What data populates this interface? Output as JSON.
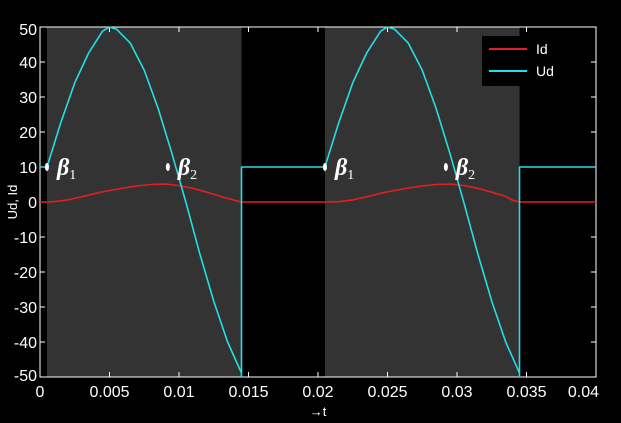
{
  "chart_data": {
    "type": "line",
    "title": "",
    "xlabel": "→t",
    "ylabel": "Ud, Id",
    "xlim": [
      0,
      0.04
    ],
    "ylim": [
      -50,
      50
    ],
    "x_ticks": [
      "0",
      "0.005",
      "0.01",
      "0.015",
      "0.02",
      "0.025",
      "0.03",
      "0.035",
      "0.04"
    ],
    "y_ticks": [
      "50",
      "40",
      "30",
      "20",
      "10",
      "0",
      "-10",
      "-20",
      "-30",
      "-40",
      "-50"
    ],
    "grid": false,
    "legend_position": "top-right",
    "shaded_intervals": [
      [
        0.0005,
        0.0145
      ],
      [
        0.0205,
        0.0345
      ]
    ],
    "series": [
      {
        "name": "Id",
        "color": "#e02020",
        "x": [
          0,
          0.0005,
          0.001,
          0.002,
          0.003,
          0.004,
          0.005,
          0.006,
          0.007,
          0.008,
          0.009,
          0.01,
          0.011,
          0.012,
          0.013,
          0.014,
          0.0145,
          0.0205,
          0.0215,
          0.0225,
          0.0235,
          0.0245,
          0.0255,
          0.0265,
          0.0275,
          0.0285,
          0.0295,
          0.0305,
          0.0315,
          0.0325,
          0.0335,
          0.034,
          0.0345,
          0.04
        ],
        "y": [
          0,
          0,
          0.1,
          0.6,
          1.5,
          2.5,
          3.3,
          4.0,
          4.6,
          5.0,
          5.1,
          4.7,
          3.9,
          2.8,
          1.6,
          0.5,
          0,
          0,
          0.1,
          0.6,
          1.5,
          2.5,
          3.3,
          4.0,
          4.6,
          5.0,
          5.1,
          4.7,
          3.9,
          2.8,
          1.6,
          0.5,
          0,
          0
        ]
      },
      {
        "name": "Ud",
        "color": "#22e0e6",
        "x": [
          0,
          0.0005,
          0.0005,
          0.0015,
          0.0025,
          0.0035,
          0.0045,
          0.005,
          0.0055,
          0.0065,
          0.0075,
          0.0085,
          0.0095,
          0.0105,
          0.0115,
          0.0125,
          0.0135,
          0.0145,
          0.0145,
          0.0145,
          0.0205,
          0.0205,
          0.0215,
          0.0225,
          0.0235,
          0.0245,
          0.025,
          0.0255,
          0.0265,
          0.0275,
          0.0285,
          0.0295,
          0.0305,
          0.0315,
          0.0325,
          0.0335,
          0.0345,
          0.0345,
          0.0345,
          0.04
        ],
        "y": [
          10,
          10,
          10,
          22.7,
          34.1,
          42.6,
          48.8,
          50,
          49.4,
          45.4,
          37.6,
          26.7,
          13.8,
          -0.2,
          -14.8,
          -28.4,
          -40.0,
          -48.9,
          -50,
          10,
          10,
          10,
          22.7,
          34.1,
          42.6,
          48.8,
          50,
          49.4,
          45.4,
          37.6,
          26.7,
          13.8,
          -0.2,
          -14.8,
          -28.4,
          -40.0,
          -48.9,
          -50,
          10,
          10
        ]
      }
    ],
    "annotations": [
      {
        "symbol": "β",
        "subscript": "1",
        "x": 0.0005,
        "y": 10
      },
      {
        "symbol": "β",
        "subscript": "2",
        "x": 0.0092,
        "y": 10
      },
      {
        "symbol": "β",
        "subscript": "1",
        "x": 0.0205,
        "y": 10
      },
      {
        "symbol": "β",
        "subscript": "2",
        "x": 0.0292,
        "y": 10
      }
    ]
  }
}
